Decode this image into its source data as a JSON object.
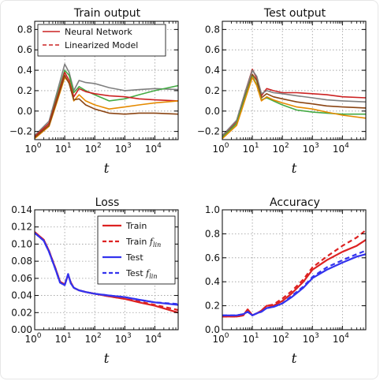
{
  "chart_data": [
    {
      "id": "train",
      "type": "line",
      "title": "Train output",
      "xlabel": "t",
      "ylabel": "",
      "xscale": "log",
      "xlim": [
        1,
        60000
      ],
      "ylim": [
        -0.28,
        0.88
      ],
      "xticks": [
        1,
        10,
        100,
        1000,
        10000
      ],
      "xticklabels": [
        [
          "10",
          "0"
        ],
        [
          "10",
          "1"
        ],
        [
          "10",
          "2"
        ],
        [
          "10",
          "3"
        ],
        [
          "10",
          "4"
        ]
      ],
      "yticks": [
        -0.2,
        0.0,
        0.2,
        0.4,
        0.6,
        0.8
      ],
      "yticklabels": [
        "−0.2",
        "0.0",
        "0.2",
        "0.4",
        "0.6",
        "0.8"
      ],
      "grid": true,
      "legend": {
        "position": "upper-left",
        "entries": [
          {
            "label": "Neural Network",
            "color": "#cc2222",
            "style": "solid"
          },
          {
            "label": "Linearized Model",
            "color": "#cc2222",
            "style": "dashed"
          }
        ]
      },
      "series": [
        {
          "color": "#7f7f7f",
          "x": [
            1,
            3,
            6,
            10,
            14,
            20,
            30,
            50,
            100,
            300,
            1000,
            3000,
            10000,
            60000
          ],
          "y": [
            -0.24,
            -0.1,
            0.22,
            0.46,
            0.38,
            0.2,
            0.3,
            0.28,
            0.27,
            0.23,
            0.2,
            0.21,
            0.22,
            0.21
          ]
        },
        {
          "color": "#44aa44",
          "x": [
            1,
            3,
            6,
            10,
            14,
            20,
            30,
            50,
            100,
            300,
            1000,
            3000,
            10000,
            60000
          ],
          "y": [
            -0.25,
            -0.12,
            0.18,
            0.4,
            0.35,
            0.18,
            0.24,
            0.2,
            0.16,
            0.1,
            0.12,
            0.16,
            0.2,
            0.25
          ]
        },
        {
          "color": "#cc2222",
          "x": [
            1,
            3,
            6,
            10,
            14,
            20,
            30,
            50,
            100,
            300,
            1000,
            3000,
            10000,
            60000
          ],
          "y": [
            -0.25,
            -0.12,
            0.16,
            0.38,
            0.3,
            0.14,
            0.22,
            0.19,
            0.17,
            0.15,
            0.14,
            0.12,
            0.11,
            0.1
          ]
        },
        {
          "color": "#e58a00",
          "x": [
            1,
            3,
            6,
            10,
            14,
            20,
            30,
            50,
            100,
            300,
            1000,
            3000,
            10000,
            60000
          ],
          "y": [
            -0.27,
            -0.15,
            0.12,
            0.33,
            0.28,
            0.1,
            0.16,
            0.1,
            0.06,
            0.02,
            0.04,
            0.06,
            0.08,
            0.1
          ]
        },
        {
          "color": "#8b4513",
          "x": [
            1,
            3,
            6,
            10,
            14,
            20,
            30,
            50,
            100,
            300,
            1000,
            3000,
            10000,
            60000
          ],
          "y": [
            -0.26,
            -0.14,
            0.14,
            0.35,
            0.27,
            0.11,
            0.12,
            0.06,
            0.02,
            -0.02,
            -0.03,
            -0.02,
            -0.02,
            -0.03
          ]
        }
      ]
    },
    {
      "id": "test",
      "type": "line",
      "title": "Test output",
      "xlabel": "t",
      "ylabel": "",
      "xscale": "log",
      "xlim": [
        1,
        60000
      ],
      "ylim": [
        -0.28,
        0.88
      ],
      "xticks": [
        1,
        10,
        100,
        1000,
        10000
      ],
      "xticklabels": [
        [
          "10",
          "0"
        ],
        [
          "10",
          "1"
        ],
        [
          "10",
          "2"
        ],
        [
          "10",
          "3"
        ],
        [
          "10",
          "4"
        ]
      ],
      "yticks": [
        -0.2,
        0.0,
        0.2,
        0.4,
        0.6,
        0.8
      ],
      "yticklabels": [
        "−0.2",
        "0.0",
        "0.2",
        "0.4",
        "0.6",
        "0.8"
      ],
      "grid": true,
      "series": [
        {
          "color": "#cc2222",
          "x": [
            1,
            3,
            6,
            10,
            14,
            20,
            30,
            50,
            100,
            300,
            1000,
            3000,
            10000,
            60000
          ],
          "y": [
            -0.25,
            -0.1,
            0.2,
            0.41,
            0.32,
            0.15,
            0.22,
            0.2,
            0.18,
            0.18,
            0.17,
            0.16,
            0.14,
            0.13
          ]
        },
        {
          "color": "#7f7f7f",
          "x": [
            1,
            3,
            6,
            10,
            14,
            20,
            30,
            50,
            100,
            300,
            1000,
            3000,
            10000,
            60000
          ],
          "y": [
            -0.24,
            -0.09,
            0.2,
            0.4,
            0.34,
            0.17,
            0.2,
            0.18,
            0.17,
            0.15,
            0.13,
            0.11,
            0.1,
            0.09
          ]
        },
        {
          "color": "#8b4513",
          "x": [
            1,
            3,
            6,
            10,
            14,
            20,
            30,
            50,
            100,
            300,
            1000,
            3000,
            10000,
            60000
          ],
          "y": [
            -0.26,
            -0.12,
            0.16,
            0.36,
            0.3,
            0.13,
            0.17,
            0.14,
            0.12,
            0.09,
            0.07,
            0.05,
            0.04,
            0.03
          ]
        },
        {
          "color": "#44aa44",
          "x": [
            1,
            3,
            6,
            10,
            14,
            20,
            30,
            50,
            100,
            300,
            1000,
            3000,
            10000,
            60000
          ],
          "y": [
            -0.26,
            -0.12,
            0.15,
            0.34,
            0.26,
            0.11,
            0.13,
            0.1,
            0.06,
            0.01,
            -0.01,
            -0.02,
            -0.03,
            -0.03
          ]
        },
        {
          "color": "#e58a00",
          "x": [
            1,
            3,
            6,
            10,
            14,
            20,
            30,
            50,
            100,
            300,
            1000,
            3000,
            10000,
            60000
          ],
          "y": [
            -0.27,
            -0.14,
            0.13,
            0.33,
            0.25,
            0.1,
            0.14,
            0.11,
            0.08,
            0.04,
            0.02,
            -0.01,
            -0.04,
            -0.07
          ]
        }
      ]
    },
    {
      "id": "loss",
      "type": "line",
      "title": "Loss",
      "xlabel": "t",
      "ylabel": "",
      "xscale": "log",
      "xlim": [
        1,
        60000
      ],
      "ylim": [
        0.0,
        0.14
      ],
      "xticks": [
        1,
        10,
        100,
        1000,
        10000
      ],
      "xticklabels": [
        [
          "10",
          "0"
        ],
        [
          "10",
          "1"
        ],
        [
          "10",
          "2"
        ],
        [
          "10",
          "3"
        ],
        [
          "10",
          "4"
        ]
      ],
      "yticks": [
        0.0,
        0.02,
        0.04,
        0.06,
        0.08,
        0.1,
        0.12,
        0.14
      ],
      "yticklabels": [
        "0.00",
        "0.02",
        "0.04",
        "0.06",
        "0.08",
        "0.10",
        "0.12",
        "0.14"
      ],
      "grid": true,
      "legend": {
        "position": "upper-right",
        "entries": [
          {
            "label": "Train",
            "sub": "",
            "color": "#dd2222",
            "style": "solid"
          },
          {
            "label": "Train ",
            "sub": "lin",
            "color": "#dd2222",
            "style": "dashed"
          },
          {
            "label": "Test",
            "sub": "",
            "color": "#3333ee",
            "style": "solid"
          },
          {
            "label": "Test ",
            "sub": "lin",
            "color": "#3333ee",
            "style": "dashed"
          }
        ]
      },
      "series": [
        {
          "name": "Train",
          "color": "#dd2222",
          "dash": false,
          "x": [
            1,
            2,
            3,
            5,
            7,
            10,
            13,
            16,
            20,
            30,
            50,
            100,
            300,
            1000,
            3000,
            10000,
            60000
          ],
          "y": [
            0.114,
            0.105,
            0.092,
            0.071,
            0.056,
            0.053,
            0.064,
            0.055,
            0.049,
            0.046,
            0.044,
            0.042,
            0.039,
            0.036,
            0.032,
            0.028,
            0.02
          ]
        },
        {
          "name": "Train f_lin",
          "color": "#dd2222",
          "dash": true,
          "x": [
            1,
            2,
            3,
            5,
            7,
            10,
            13,
            16,
            20,
            30,
            50,
            100,
            300,
            1000,
            3000,
            10000,
            60000
          ],
          "y": [
            0.114,
            0.105,
            0.092,
            0.071,
            0.056,
            0.053,
            0.064,
            0.055,
            0.049,
            0.046,
            0.044,
            0.042,
            0.039,
            0.036,
            0.033,
            0.029,
            0.023
          ]
        },
        {
          "name": "Test",
          "color": "#3333ee",
          "dash": false,
          "x": [
            1,
            2,
            3,
            5,
            7,
            10,
            13,
            16,
            20,
            30,
            50,
            100,
            300,
            1000,
            3000,
            10000,
            60000
          ],
          "y": [
            0.113,
            0.104,
            0.091,
            0.07,
            0.055,
            0.052,
            0.065,
            0.054,
            0.049,
            0.046,
            0.044,
            0.042,
            0.04,
            0.038,
            0.035,
            0.032,
            0.029
          ]
        },
        {
          "name": "Test f_lin",
          "color": "#3333ee",
          "dash": true,
          "x": [
            1,
            2,
            3,
            5,
            7,
            10,
            13,
            16,
            20,
            30,
            50,
            100,
            300,
            1000,
            3000,
            10000,
            60000
          ],
          "y": [
            0.113,
            0.104,
            0.091,
            0.07,
            0.055,
            0.052,
            0.065,
            0.054,
            0.049,
            0.046,
            0.044,
            0.042,
            0.04,
            0.038,
            0.035,
            0.032,
            0.03
          ]
        }
      ]
    },
    {
      "id": "accuracy",
      "type": "line",
      "title": "Accuracy",
      "xlabel": "t",
      "ylabel": "",
      "xscale": "log",
      "xlim": [
        1,
        60000
      ],
      "ylim": [
        0.0,
        1.0
      ],
      "xticks": [
        1,
        10,
        100,
        1000,
        10000
      ],
      "xticklabels": [
        [
          "10",
          "0"
        ],
        [
          "10",
          "1"
        ],
        [
          "10",
          "2"
        ],
        [
          "10",
          "3"
        ],
        [
          "10",
          "4"
        ]
      ],
      "yticks": [
        0.0,
        0.2,
        0.4,
        0.6,
        0.8,
        1.0
      ],
      "yticklabels": [
        "0.0",
        "0.2",
        "0.4",
        "0.6",
        "0.8",
        "1.0"
      ],
      "grid": true,
      "series": [
        {
          "name": "Train",
          "color": "#dd2222",
          "dash": false,
          "x": [
            1,
            3,
            5,
            7,
            10,
            15,
            20,
            30,
            50,
            100,
            200,
            500,
            1000,
            3000,
            10000,
            30000,
            60000
          ],
          "y": [
            0.11,
            0.11,
            0.12,
            0.17,
            0.12,
            0.14,
            0.16,
            0.2,
            0.2,
            0.24,
            0.3,
            0.4,
            0.5,
            0.58,
            0.65,
            0.7,
            0.75
          ]
        },
        {
          "name": "Train f_lin",
          "color": "#dd2222",
          "dash": true,
          "x": [
            1,
            3,
            5,
            7,
            10,
            15,
            20,
            30,
            50,
            100,
            200,
            500,
            1000,
            3000,
            10000,
            30000,
            60000
          ],
          "y": [
            0.11,
            0.11,
            0.12,
            0.17,
            0.12,
            0.14,
            0.16,
            0.2,
            0.21,
            0.26,
            0.32,
            0.42,
            0.52,
            0.61,
            0.7,
            0.77,
            0.83
          ]
        },
        {
          "name": "Test",
          "color": "#3333ee",
          "dash": false,
          "x": [
            1,
            3,
            5,
            7,
            10,
            15,
            20,
            30,
            50,
            100,
            200,
            500,
            1000,
            3000,
            10000,
            30000,
            60000
          ],
          "y": [
            0.12,
            0.12,
            0.13,
            0.15,
            0.12,
            0.14,
            0.15,
            0.18,
            0.19,
            0.22,
            0.27,
            0.35,
            0.43,
            0.5,
            0.56,
            0.61,
            0.63
          ]
        },
        {
          "name": "Test f_lin",
          "color": "#3333ee",
          "dash": true,
          "x": [
            1,
            3,
            5,
            7,
            10,
            15,
            20,
            30,
            50,
            100,
            200,
            500,
            1000,
            3000,
            10000,
            30000,
            60000
          ],
          "y": [
            0.12,
            0.12,
            0.13,
            0.15,
            0.12,
            0.14,
            0.15,
            0.18,
            0.19,
            0.22,
            0.28,
            0.36,
            0.44,
            0.52,
            0.58,
            0.63,
            0.66
          ]
        }
      ]
    }
  ]
}
